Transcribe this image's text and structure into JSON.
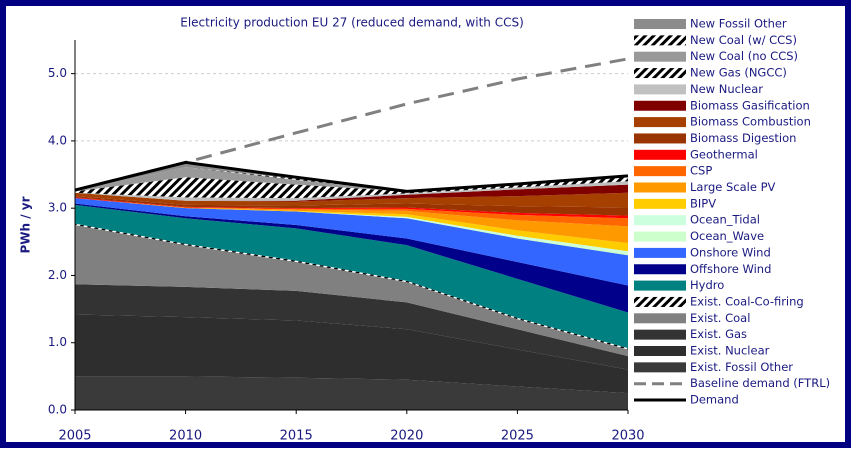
{
  "chart_data": {
    "type": "stacked_area",
    "title": "Electricity production EU 27 (reduced demand, with CCS)",
    "ylabel": "PWh / yr",
    "x": [
      2005,
      2010,
      2015,
      2020,
      2025,
      2030
    ],
    "xlim": [
      2005,
      2030
    ],
    "xticks": [
      2005,
      2010,
      2015,
      2020,
      2025,
      2030
    ],
    "ylim": [
      0,
      5.5
    ],
    "yticks": [
      {
        "value": 0,
        "label": "0.0"
      },
      {
        "value": 1,
        "label": "1.0"
      },
      {
        "value": 2,
        "label": "2.0"
      },
      {
        "value": 3,
        "label": "3.0"
      },
      {
        "value": 4,
        "label": "4.0"
      },
      {
        "value": 5,
        "label": "5.0"
      }
    ],
    "grid": true,
    "legend": "right",
    "series": [
      {
        "name": "Exist. Fossil Other",
        "color": "#3a3a3a",
        "values": [
          0.5,
          0.5,
          0.48,
          0.45,
          0.35,
          0.25
        ]
      },
      {
        "name": "Exist. Nuclear",
        "color": "#2e2e2e",
        "values": [
          0.92,
          0.88,
          0.85,
          0.75,
          0.55,
          0.35
        ]
      },
      {
        "name": "Exist. Gas",
        "color": "#333333",
        "values": [
          0.45,
          0.45,
          0.44,
          0.4,
          0.3,
          0.2
        ]
      },
      {
        "name": "Exist. Coal",
        "color": "#808080",
        "values": [
          0.88,
          0.62,
          0.43,
          0.3,
          0.15,
          0.1
        ]
      },
      {
        "name": "Exist. Coal-Co-firing",
        "color": "#333333",
        "pattern": "hatch",
        "values": [
          0.02,
          0.02,
          0.02,
          0.02,
          0.02,
          0.02
        ]
      },
      {
        "name": "Hydro",
        "color": "#008080",
        "values": [
          0.28,
          0.38,
          0.48,
          0.53,
          0.58,
          0.53
        ]
      },
      {
        "name": "Offshore Wind",
        "color": "#00008b",
        "values": [
          0.02,
          0.03,
          0.05,
          0.1,
          0.25,
          0.4
        ]
      },
      {
        "name": "Onshore Wind",
        "color": "#3366ff",
        "values": [
          0.08,
          0.12,
          0.2,
          0.3,
          0.35,
          0.45
        ]
      },
      {
        "name": "Ocean_Wave",
        "color": "#ccffcc",
        "values": [
          0,
          0,
          0,
          0.01,
          0.02,
          0.03
        ]
      },
      {
        "name": "Ocean_Tidal",
        "color": "#ccffdd",
        "values": [
          0,
          0,
          0,
          0.01,
          0.02,
          0.03
        ]
      },
      {
        "name": "BIPV",
        "color": "#ffcc00",
        "values": [
          0,
          0,
          0.01,
          0.04,
          0.08,
          0.12
        ]
      },
      {
        "name": "Large Scale PV",
        "color": "#ff9900",
        "values": [
          0,
          0.01,
          0.02,
          0.05,
          0.15,
          0.25
        ]
      },
      {
        "name": "CSP",
        "color": "#ff6600",
        "values": [
          0,
          0,
          0.01,
          0.03,
          0.08,
          0.12
        ]
      },
      {
        "name": "Geothermal",
        "color": "#ff0000",
        "values": [
          0.01,
          0.01,
          0.01,
          0.02,
          0.03,
          0.04
        ]
      },
      {
        "name": "Biomass Digestion",
        "color": "#993300",
        "values": [
          0.02,
          0.03,
          0.04,
          0.06,
          0.1,
          0.12
        ]
      },
      {
        "name": "Biomass Combustion",
        "color": "#a64000",
        "values": [
          0.05,
          0.06,
          0.06,
          0.08,
          0.15,
          0.22
        ]
      },
      {
        "name": "Biomass Gasification",
        "color": "#800000",
        "values": [
          0,
          0,
          0.01,
          0.05,
          0.1,
          0.12
        ]
      },
      {
        "name": "New Nuclear",
        "color": "#c0c0c0",
        "values": [
          0,
          0.05,
          0.04,
          0.02,
          0.03,
          0.05
        ]
      },
      {
        "name": "New Gas (NGCC)",
        "color": "#b0b0b0",
        "pattern": "hatch",
        "values": [
          0.02,
          0.3,
          0.2,
          0.03,
          0.04,
          0.08
        ]
      },
      {
        "name": "New Coal (no CCS)",
        "color": "#999999",
        "values": [
          0.02,
          0.15,
          0.07,
          0,
          0,
          0
        ]
      },
      {
        "name": "New Coal (w/ CCS)",
        "color": "#808080",
        "pattern": "hatch",
        "values": [
          0,
          0,
          0.02,
          0,
          0,
          0
        ]
      },
      {
        "name": "New Fossil Other",
        "color": "#8c8c8c",
        "values": [
          0,
          0.05,
          0.02,
          0,
          0,
          0
        ]
      }
    ],
    "lines": [
      {
        "name": "Baseline demand (FTRL)",
        "color": "#808080",
        "dash": true,
        "values": [
          3.27,
          3.68,
          4.12,
          4.55,
          4.92,
          5.22
        ]
      },
      {
        "name": "Demand",
        "color": "#000000",
        "values": [
          3.27,
          3.68,
          3.46,
          3.25,
          3.36,
          3.48
        ]
      }
    ]
  }
}
